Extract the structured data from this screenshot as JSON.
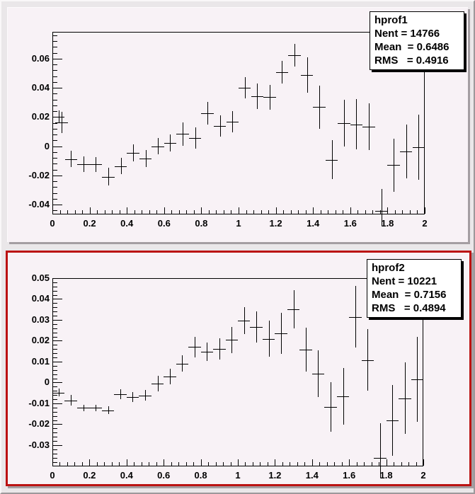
{
  "colors": {
    "canvas_bg": "#eae7e9",
    "pad_bg": "#f8f2f6",
    "selected_pad_border": "#bb1212",
    "shadow": "#a49ea2",
    "ink": "#000000",
    "stat_bg": "#ffffff"
  },
  "chart_data": [
    {
      "type": "scatter",
      "subtype": "profile-histogram-with-error-bars",
      "title": "hprof1",
      "stats_box": {
        "title": "hprof1",
        "lines": [
          "Nent = 14766",
          "Mean  = 0.6486",
          "RMS   = 0.4916"
        ],
        "entries": 14766,
        "mean": 0.6486,
        "rms": 0.4916
      },
      "xlim": [
        0,
        2
      ],
      "ylim": [
        -0.0468,
        0.0784
      ],
      "x_tick_values": [
        0,
        0.2,
        0.4,
        0.6,
        0.8,
        1,
        1.2,
        1.4,
        1.6,
        1.8,
        2
      ],
      "x_tick_labels": [
        "0",
        "0.2",
        "0.4",
        "0.6",
        "0.8",
        "1",
        "1.2",
        "1.4",
        "1.6",
        "1.8",
        "2"
      ],
      "y_tick_values": [
        0.06,
        0.04,
        0.02,
        0,
        -0.02,
        -0.04
      ],
      "y_tick_labels": [
        "0.06",
        "0.04",
        "0.02",
        "0",
        "-0.02",
        "-0.04"
      ],
      "x_minor_step": 0.04,
      "y_major_step": 0.02,
      "y_minor_step": 0.004,
      "bin_half_width": 0.0333,
      "grid": false,
      "legend": false,
      "marker_color": "#000000",
      "points_xyerr": [
        [
          0.033,
          0.0203,
          0.0042
        ],
        [
          0.05,
          0.0163,
          0.0072
        ],
        [
          0.1,
          -0.0089,
          0.0056
        ],
        [
          0.167,
          -0.0125,
          0.0053
        ],
        [
          0.233,
          -0.0125,
          0.005
        ],
        [
          0.3,
          -0.021,
          0.006
        ],
        [
          0.367,
          -0.0137,
          0.0056
        ],
        [
          0.433,
          -0.0045,
          0.0057
        ],
        [
          0.5,
          -0.0084,
          0.0057
        ],
        [
          0.567,
          0.0,
          0.0057
        ],
        [
          0.633,
          0.002,
          0.0058
        ],
        [
          0.7,
          0.0085,
          0.008
        ],
        [
          0.767,
          0.0056,
          0.0073
        ],
        [
          0.833,
          0.0226,
          0.0077
        ],
        [
          0.9,
          0.0139,
          0.0073
        ],
        [
          0.967,
          0.0168,
          0.0073
        ],
        [
          1.033,
          0.04,
          0.0073
        ],
        [
          1.1,
          0.0342,
          0.0089
        ],
        [
          1.167,
          0.0337,
          0.0085
        ],
        [
          1.233,
          0.0507,
          0.0077
        ],
        [
          1.3,
          0.0624,
          0.0077
        ],
        [
          1.367,
          0.0488,
          0.0122
        ],
        [
          1.433,
          0.0268,
          0.0147
        ],
        [
          1.5,
          -0.0093,
          0.0134
        ],
        [
          1.567,
          0.0159,
          0.016
        ],
        [
          1.633,
          0.015,
          0.0172
        ],
        [
          1.7,
          0.0134,
          0.016
        ],
        [
          1.767,
          -0.0443,
          0.015
        ],
        [
          1.833,
          -0.0129,
          0.0182
        ],
        [
          1.9,
          -0.0036,
          0.0186
        ],
        [
          1.967,
          -0.0007,
          0.0224
        ]
      ]
    },
    {
      "type": "scatter",
      "subtype": "profile-histogram-with-error-bars",
      "title": "hprof2",
      "stats_box": {
        "title": "hprof2",
        "lines": [
          "Nent = 10221",
          "Mean  = 0.7156",
          "RMS   = 0.4894"
        ],
        "entries": 10221,
        "mean": 0.7156,
        "rms": 0.4894
      },
      "xlim": [
        0,
        2
      ],
      "ylim": [
        -0.0402,
        0.05
      ],
      "x_tick_values": [
        0,
        0.2,
        0.4,
        0.6,
        0.8,
        1,
        1.2,
        1.4,
        1.6,
        1.8,
        2
      ],
      "x_tick_labels": [
        "0",
        "0.2",
        "0.4",
        "0.6",
        "0.8",
        "1",
        "1.2",
        "1.4",
        "1.6",
        "1.8",
        "2"
      ],
      "y_tick_values": [
        0.05,
        0.04,
        0.03,
        0.02,
        0.01,
        0,
        -0.01,
        -0.02,
        -0.03
      ],
      "y_tick_labels": [
        "0.05",
        "0.04",
        "0.03",
        "0.02",
        "0.01",
        "0",
        "-0.01",
        "-0.02",
        "-0.03"
      ],
      "x_minor_step": 0.04,
      "y_major_step": 0.01,
      "y_minor_step": 0.002,
      "bin_half_width": 0.0333,
      "grid": false,
      "legend": false,
      "marker_color": "#000000",
      "points_xyerr": [
        [
          0.033,
          -0.0048,
          0.0019
        ],
        [
          0.1,
          -0.0086,
          0.0026
        ],
        [
          0.167,
          -0.0121,
          0.0015
        ],
        [
          0.233,
          -0.0121,
          0.0015
        ],
        [
          0.3,
          -0.0133,
          0.0018
        ],
        [
          0.367,
          -0.0056,
          0.0023
        ],
        [
          0.433,
          -0.0069,
          0.0023
        ],
        [
          0.5,
          -0.0062,
          0.0025
        ],
        [
          0.567,
          -0.0005,
          0.0037
        ],
        [
          0.633,
          0.0029,
          0.0036
        ],
        [
          0.7,
          0.0091,
          0.0038
        ],
        [
          0.767,
          0.017,
          0.005
        ],
        [
          0.833,
          0.0147,
          0.0045
        ],
        [
          0.9,
          0.0161,
          0.005
        ],
        [
          0.967,
          0.0204,
          0.0062
        ],
        [
          1.033,
          0.0297,
          0.0064
        ],
        [
          1.1,
          0.0266,
          0.0074
        ],
        [
          1.167,
          0.021,
          0.0085
        ],
        [
          1.233,
          0.0235,
          0.0099
        ],
        [
          1.3,
          0.0351,
          0.0092
        ],
        [
          1.367,
          0.0157,
          0.0106
        ],
        [
          1.433,
          0.0042,
          0.0113
        ],
        [
          1.5,
          -0.0118,
          0.0119
        ],
        [
          1.567,
          -0.0067,
          0.0136
        ],
        [
          1.633,
          0.0315,
          0.0147
        ],
        [
          1.7,
          0.0108,
          0.0147
        ],
        [
          1.767,
          -0.0361,
          0.0165
        ],
        [
          1.833,
          -0.0182,
          0.0169
        ],
        [
          1.9,
          -0.0075,
          0.0172
        ],
        [
          1.967,
          0.0015,
          0.0203
        ]
      ]
    }
  ]
}
